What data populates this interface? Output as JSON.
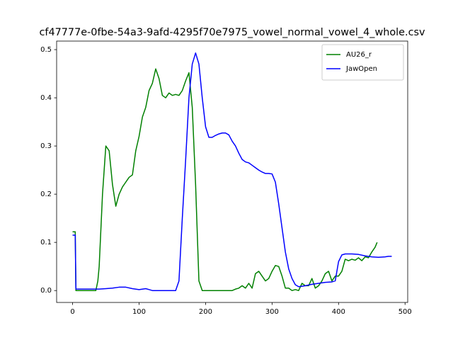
{
  "chart_data": {
    "type": "line",
    "title": "cf47777e-0fbe-54a3-9afd-4295f70e7975_vowel_normal_vowel_4_whole.csv",
    "xlim": [
      -24,
      504
    ],
    "xticks": [
      0,
      100,
      200,
      300,
      400,
      500
    ],
    "ylim": [
      -0.0247,
      0.5177
    ],
    "yticks": [
      {
        "value": 0,
        "label": "0.0"
      },
      0.1,
      0.2,
      0.3,
      0.4,
      0.5
    ],
    "legend": "upper right",
    "series": [
      {
        "name": "AU26_r",
        "color": "#008000",
        "x": [
          0,
          4,
          5,
          10,
          15,
          20,
          25,
          30,
          35,
          38,
          40,
          45,
          50,
          55,
          60,
          65,
          70,
          75,
          80,
          85,
          90,
          95,
          100,
          105,
          110,
          115,
          120,
          125,
          130,
          135,
          140,
          145,
          150,
          155,
          160,
          165,
          170,
          175,
          180,
          185,
          190,
          195,
          200,
          210,
          220,
          230,
          240,
          245,
          250,
          255,
          260,
          265,
          270,
          275,
          280,
          285,
          290,
          295,
          300,
          305,
          310,
          315,
          320,
          325,
          330,
          335,
          340,
          345,
          350,
          355,
          360,
          365,
          370,
          375,
          380,
          385,
          390,
          395,
          400,
          405,
          410,
          415,
          420,
          425,
          430,
          435,
          440,
          445,
          450,
          455,
          458
        ],
        "values": [
          0.122,
          0.122,
          0,
          0,
          0,
          0,
          0,
          0,
          0,
          0.02,
          0.05,
          0.2,
          0.3,
          0.29,
          0.22,
          0.175,
          0.2,
          0.215,
          0.225,
          0.235,
          0.24,
          0.29,
          0.32,
          0.36,
          0.38,
          0.415,
          0.43,
          0.46,
          0.44,
          0.405,
          0.4,
          0.41,
          0.405,
          0.407,
          0.405,
          0.415,
          0.435,
          0.452,
          0.38,
          0.22,
          0.02,
          0,
          0,
          0,
          0,
          0,
          0,
          0.003,
          0.005,
          0.01,
          0.005,
          0.015,
          0.005,
          0.035,
          0.04,
          0.03,
          0.02,
          0.025,
          0.04,
          0.052,
          0.05,
          0.03,
          0.005,
          0.005,
          0,
          0.002,
          0,
          0.015,
          0.01,
          0.01,
          0.025,
          0.005,
          0.01,
          0.02,
          0.035,
          0.04,
          0.02,
          0.03,
          0.03,
          0.04,
          0.065,
          0.062,
          0.065,
          0.063,
          0.068,
          0.062,
          0.07,
          0.068,
          0.08,
          0.09,
          0.1
        ]
      },
      {
        "name": "JawOpen",
        "color": "#0000ff",
        "x": [
          0,
          4,
          5,
          10,
          20,
          30,
          40,
          50,
          60,
          70,
          80,
          90,
          100,
          110,
          115,
          120,
          130,
          140,
          150,
          155,
          160,
          165,
          170,
          175,
          180,
          185,
          190,
          195,
          200,
          205,
          210,
          215,
          220,
          225,
          230,
          235,
          240,
          245,
          250,
          255,
          260,
          265,
          270,
          275,
          280,
          285,
          290,
          295,
          300,
          305,
          310,
          315,
          320,
          325,
          330,
          335,
          340,
          345,
          350,
          360,
          370,
          380,
          390,
          395,
          400,
          405,
          410,
          420,
          430,
          440,
          450,
          460,
          470,
          475,
          480
        ],
        "values": [
          0.115,
          0.115,
          0.003,
          0.003,
          0.003,
          0.003,
          0.003,
          0.004,
          0.005,
          0.007,
          0.007,
          0.004,
          0.002,
          0.004,
          0.002,
          0,
          0,
          0,
          0,
          0,
          0.02,
          0.15,
          0.27,
          0.4,
          0.47,
          0.493,
          0.47,
          0.4,
          0.34,
          0.318,
          0.318,
          0.322,
          0.325,
          0.327,
          0.327,
          0.323,
          0.31,
          0.3,
          0.285,
          0.272,
          0.267,
          0.265,
          0.26,
          0.255,
          0.25,
          0.246,
          0.243,
          0.243,
          0.242,
          0.225,
          0.18,
          0.13,
          0.08,
          0.045,
          0.025,
          0.012,
          0.008,
          0.009,
          0.01,
          0.013,
          0.015,
          0.017,
          0.018,
          0.02,
          0.06,
          0.074,
          0.076,
          0.076,
          0.075,
          0.072,
          0.07,
          0.069,
          0.07,
          0.071,
          0.071
        ]
      }
    ]
  }
}
